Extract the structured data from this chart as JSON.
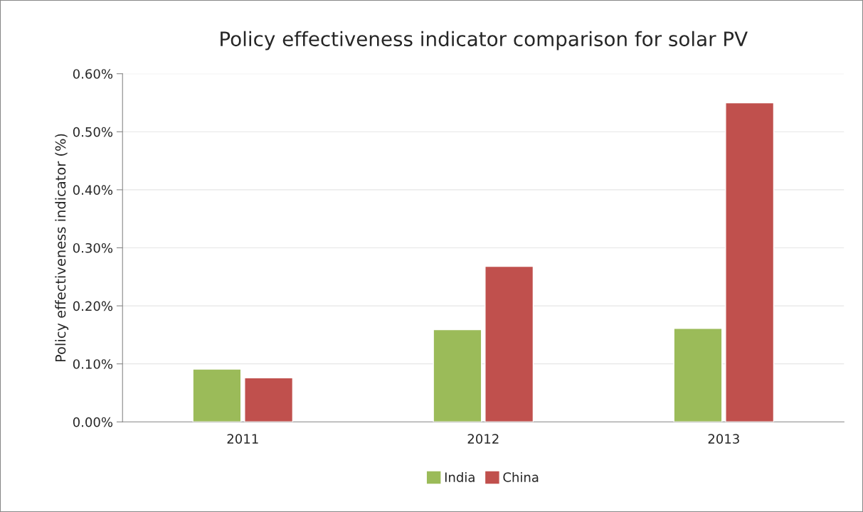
{
  "chart_data": {
    "type": "bar",
    "title": "Policy effectiveness indicator comparison for solar PV",
    "ylabel": "Policy effectiveness indicator (%)",
    "categories": [
      "2011",
      "2012",
      "2013"
    ],
    "series": [
      {
        "name": "India",
        "color": "#9bbb59",
        "values": [
          0.091,
          0.159,
          0.161
        ]
      },
      {
        "name": "China",
        "color": "#c0504d",
        "values": [
          0.076,
          0.268,
          0.55
        ]
      }
    ],
    "ylim": [
      0,
      0.6
    ],
    "yticks": [
      {
        "value": 0,
        "label": "0.00%"
      },
      {
        "value": 0.1,
        "label": "0.10%"
      },
      {
        "value": 0.2,
        "label": "0.20%"
      },
      {
        "value": 0.3,
        "label": "0.30%"
      },
      {
        "value": 0.4,
        "label": "0.40%"
      },
      {
        "value": 0.5,
        "label": "0.50%"
      },
      {
        "value": 0.6,
        "label": "0.60%"
      }
    ],
    "grid": "y",
    "legend": "bottom"
  }
}
